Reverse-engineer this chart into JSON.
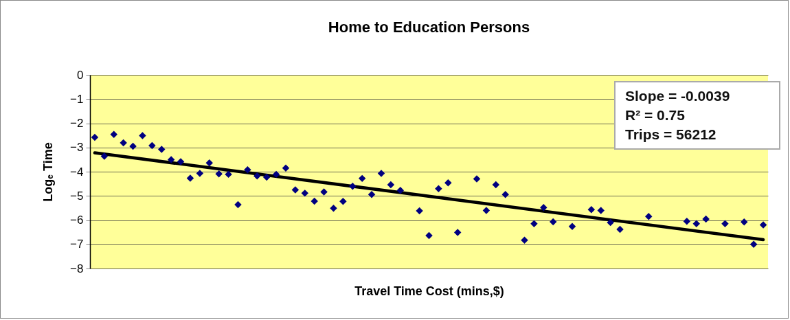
{
  "chart_data": {
    "type": "scatter",
    "title": "Home to Education Persons",
    "xlabel": "Travel Time Cost (mins,$)",
    "ylabel": "Logₑ Time",
    "categories": [
      null,
      null,
      null,
      null,
      null,
      null,
      null,
      null,
      null,
      null,
      null,
      null,
      null,
      null,
      null,
      null,
      null,
      null,
      null,
      null,
      null,
      null,
      null,
      null,
      null,
      null,
      null,
      null,
      null,
      null,
      null,
      null,
      null,
      null,
      null,
      null,
      null,
      null,
      null,
      null,
      null,
      null,
      null,
      null,
      null,
      null,
      null,
      null,
      null,
      null,
      null,
      null,
      null,
      null,
      null,
      null,
      null,
      null,
      null,
      null,
      null,
      null,
      null,
      null,
      null,
      null,
      null,
      null,
      null,
      null,
      null
    ],
    "series": [
      {
        "color": "#000080",
        "marker": "diamond",
        "values": [
          -2.58,
          -3.36,
          -2.46,
          -2.81,
          -2.95,
          -2.51,
          -2.92,
          -3.08,
          -3.5,
          -3.59,
          -4.27,
          -4.07,
          -3.64,
          -4.09,
          -4.11,
          -5.36,
          -3.92,
          -4.18,
          -4.23,
          -4.11,
          -3.85,
          -4.75,
          -4.89,
          -5.22,
          -4.84,
          -5.51,
          -5.23,
          -4.6,
          -4.28,
          -4.94,
          -4.07,
          -4.54,
          -4.77,
          null,
          -5.62,
          -6.64,
          -4.7,
          -4.46,
          -6.51,
          null,
          -4.3,
          -5.6,
          -4.54,
          -4.94,
          null,
          -6.83,
          -6.15,
          -5.48,
          -6.07,
          null,
          -6.26,
          null,
          -5.57,
          -5.6,
          -6.1,
          -6.38,
          null,
          null,
          -5.85,
          null,
          null,
          null,
          -6.05,
          -6.15,
          -5.96,
          null,
          -6.15,
          null,
          -6.08,
          -7.0,
          -6.2
        ]
      },
      {
        "type": "line",
        "color": "#000000",
        "marker": "none",
        "values": [
          -3.22,
          null,
          null,
          null,
          null,
          null,
          null,
          null,
          null,
          null,
          null,
          null,
          null,
          null,
          null,
          null,
          null,
          null,
          null,
          null,
          null,
          null,
          null,
          null,
          null,
          null,
          null,
          null,
          null,
          null,
          null,
          null,
          null,
          null,
          null,
          null,
          null,
          null,
          null,
          null,
          null,
          null,
          null,
          null,
          null,
          null,
          null,
          null,
          null,
          null,
          null,
          null,
          null,
          null,
          null,
          null,
          null,
          null,
          null,
          null,
          null,
          null,
          null,
          null,
          null,
          null,
          null,
          null,
          null,
          null,
          -6.81
        ]
      }
    ],
    "ylim": [
      -8,
      0
    ],
    "yticks": [
      -8,
      -7,
      -6,
      -5,
      -4,
      -3,
      -2,
      -1,
      0
    ],
    "grid": "y",
    "tick_labels": "y",
    "annotations": [
      "Slope = -0.0039",
      "R² = 0.75",
      "Trips = 56212"
    ]
  }
}
